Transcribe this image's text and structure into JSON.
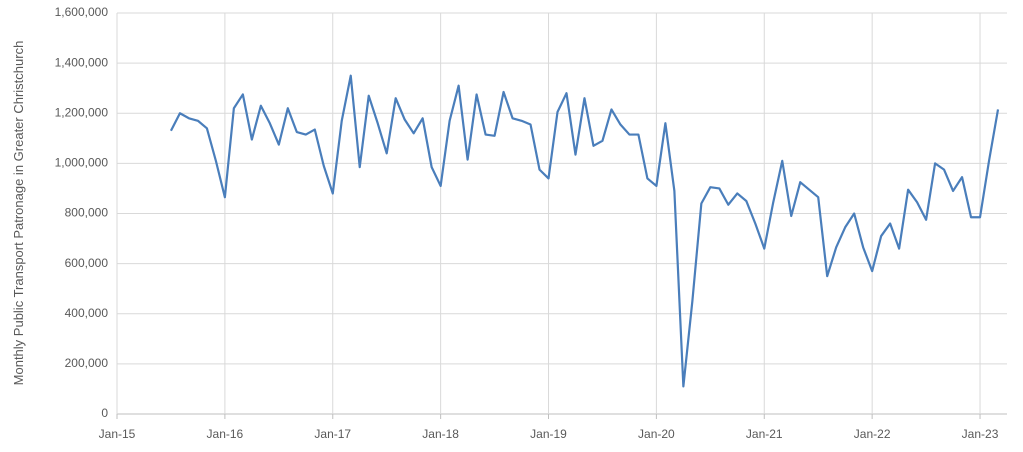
{
  "chart_data": {
    "type": "line",
    "y_label": "Monthly Public Transport Patronage in Greater Christchurch",
    "x": [
      "2015-07",
      "2015-08",
      "2015-09",
      "2015-10",
      "2015-11",
      "2015-12",
      "2016-01",
      "2016-02",
      "2016-03",
      "2016-04",
      "2016-05",
      "2016-06",
      "2016-07",
      "2016-08",
      "2016-09",
      "2016-10",
      "2016-11",
      "2016-12",
      "2017-01",
      "2017-02",
      "2017-03",
      "2017-04",
      "2017-05",
      "2017-06",
      "2017-07",
      "2017-08",
      "2017-09",
      "2017-10",
      "2017-11",
      "2017-12",
      "2018-01",
      "2018-02",
      "2018-03",
      "2018-04",
      "2018-05",
      "2018-06",
      "2018-07",
      "2018-08",
      "2018-09",
      "2018-10",
      "2018-11",
      "2018-12",
      "2019-01",
      "2019-02",
      "2019-03",
      "2019-04",
      "2019-05",
      "2019-06",
      "2019-07",
      "2019-08",
      "2019-09",
      "2019-10",
      "2019-11",
      "2019-12",
      "2020-01",
      "2020-02",
      "2020-03",
      "2020-04",
      "2020-05",
      "2020-06",
      "2020-07",
      "2020-08",
      "2020-09",
      "2020-10",
      "2020-11",
      "2020-12",
      "2021-01",
      "2021-02",
      "2021-03",
      "2021-04",
      "2021-05",
      "2021-06",
      "2021-07",
      "2021-08",
      "2021-09",
      "2021-10",
      "2021-11",
      "2021-12",
      "2022-01",
      "2022-02",
      "2022-03",
      "2022-04",
      "2022-05",
      "2022-06",
      "2022-07",
      "2022-08",
      "2022-09",
      "2022-10",
      "2022-11",
      "2022-12",
      "2023-01",
      "2023-02",
      "2023-03"
    ],
    "series": [
      {
        "color": "#4a7ebb",
        "values": [
          1130000,
          1200000,
          1180000,
          1170000,
          1140000,
          1010000,
          865000,
          1220000,
          1275000,
          1095000,
          1230000,
          1160000,
          1075000,
          1220000,
          1125000,
          1115000,
          1135000,
          990000,
          880000,
          1170000,
          1350000,
          985000,
          1270000,
          1160000,
          1040000,
          1260000,
          1175000,
          1120000,
          1180000,
          985000,
          910000,
          1170000,
          1310000,
          1015000,
          1275000,
          1115000,
          1110000,
          1285000,
          1180000,
          1170000,
          1155000,
          975000,
          940000,
          1205000,
          1280000,
          1035000,
          1260000,
          1070000,
          1090000,
          1215000,
          1155000,
          1115000,
          1115000,
          940000,
          910000,
          1160000,
          890000,
          110000,
          450000,
          840000,
          905000,
          900000,
          835000,
          880000,
          850000,
          760000,
          660000,
          845000,
          1010000,
          790000,
          925000,
          895000,
          865000,
          550000,
          665000,
          745000,
          800000,
          665000,
          570000,
          710000,
          760000,
          660000,
          895000,
          845000,
          775000,
          1000000,
          975000,
          890000,
          945000,
          785000,
          785000,
          1010000,
          1215000
        ]
      }
    ],
    "xlim": [
      "2015-01",
      "2023-04"
    ],
    "xticks": [
      {
        "value": "2015-01",
        "label": "Jan-15"
      },
      {
        "value": "2016-01",
        "label": "Jan-16"
      },
      {
        "value": "2017-01",
        "label": "Jan-17"
      },
      {
        "value": "2018-01",
        "label": "Jan-18"
      },
      {
        "value": "2019-01",
        "label": "Jan-19"
      },
      {
        "value": "2020-01",
        "label": "Jan-20"
      },
      {
        "value": "2021-01",
        "label": "Jan-21"
      },
      {
        "value": "2022-01",
        "label": "Jan-22"
      },
      {
        "value": "2023-01",
        "label": "Jan-23"
      }
    ],
    "ylim": [
      0,
      1600000
    ],
    "yticks": [
      0,
      {
        "value": 200000,
        "label": "200,000"
      },
      {
        "value": 400000,
        "label": "400,000"
      },
      {
        "value": 600000,
        "label": "600,000"
      },
      {
        "value": 800000,
        "label": "800,000"
      },
      {
        "value": 1000000,
        "label": "1,000,000"
      },
      {
        "value": 1200000,
        "label": "1,200,000"
      },
      {
        "value": 1400000,
        "label": "1,400,000"
      },
      {
        "value": 1600000,
        "label": "1,600,000"
      }
    ],
    "grid": true
  }
}
